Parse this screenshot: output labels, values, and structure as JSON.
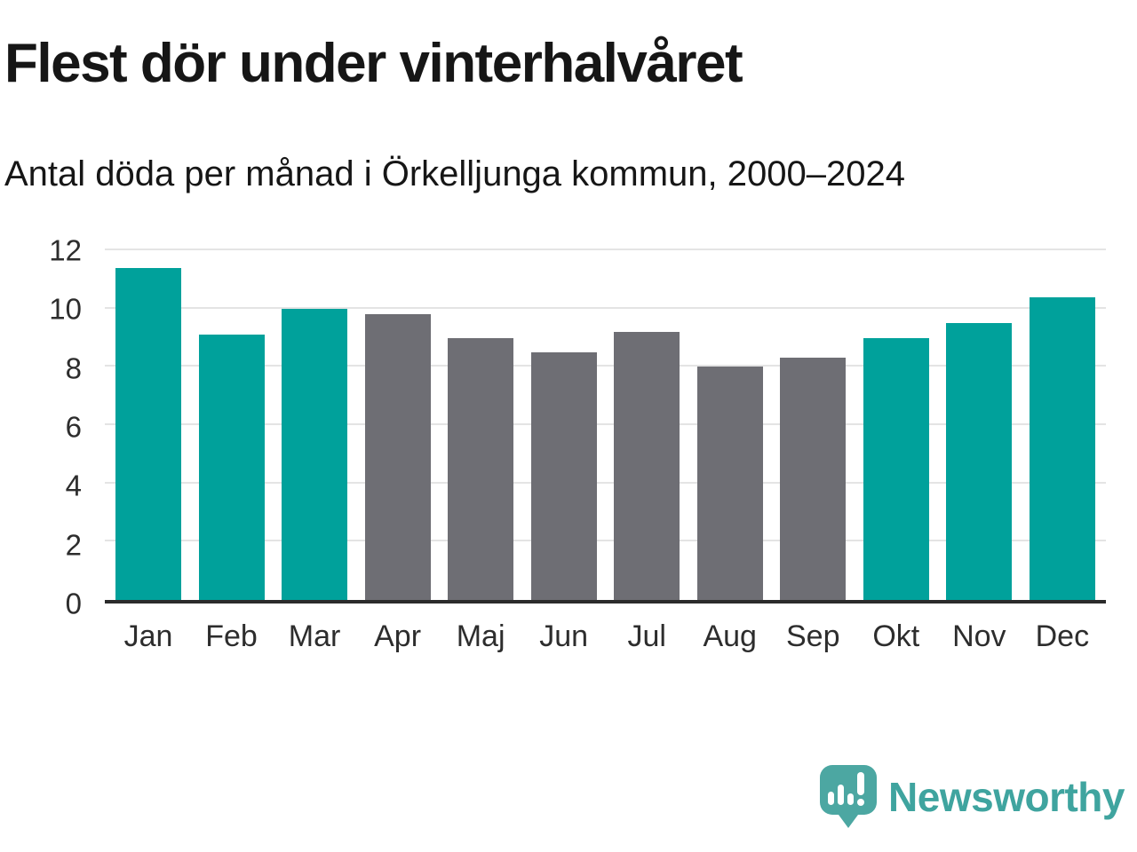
{
  "header": {
    "title": "Flest dör under vinterhalvåret",
    "subtitle": "Antal döda per månad i Örkelljunga kommun, 2000–2024"
  },
  "chart_data": {
    "type": "bar",
    "title": "Flest dör under vinterhalvåret",
    "subtitle": "Antal döda per månad i Örkelljunga kommun, 2000–2024",
    "categories": [
      "Jan",
      "Feb",
      "Mar",
      "Apr",
      "Maj",
      "Jun",
      "Jul",
      "Aug",
      "Sep",
      "Okt",
      "Nov",
      "Dec"
    ],
    "values": [
      11.4,
      9.1,
      10.0,
      9.8,
      9.0,
      8.5,
      9.2,
      8.0,
      8.3,
      9.0,
      9.5,
      10.4
    ],
    "bar_colors": [
      "#00a19b",
      "#00a19b",
      "#00a19b",
      "#6e6e74",
      "#6e6e74",
      "#6e6e74",
      "#6e6e74",
      "#6e6e74",
      "#6e6e74",
      "#00a19b",
      "#00a19b",
      "#00a19b"
    ],
    "color_meaning": {
      "winter_months": "#00a19b",
      "summer_months": "#6e6e74"
    },
    "xlabel": "",
    "ylabel": "",
    "ylim": [
      0,
      12
    ],
    "yticks": [
      0,
      2,
      4,
      6,
      8,
      10,
      12
    ],
    "grid": "horizontal",
    "legend": "none"
  },
  "footer": {
    "brand": "Newsworthy",
    "logo_icon": "bar-chart-speech-bubble-icon",
    "logo_color": "#4ca7a2",
    "wordmark_color": "#3fa49f"
  }
}
